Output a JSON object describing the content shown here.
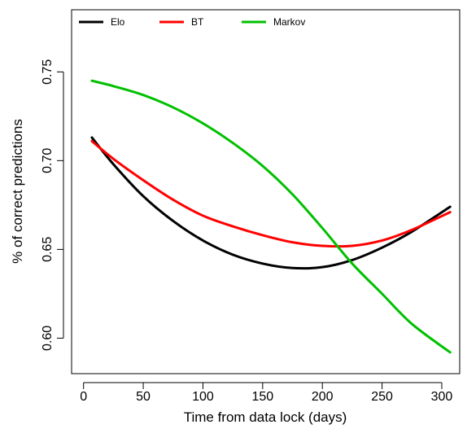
{
  "chart_data": {
    "type": "line",
    "xlabel": "Time from data lock (days)",
    "ylabel": "% of correct predictions",
    "xlim": [
      -10,
      315
    ],
    "ylim": [
      0.58,
      0.785
    ],
    "xticks": [
      0,
      50,
      100,
      150,
      200,
      250,
      300
    ],
    "yticks": [
      0.6,
      0.65,
      0.7,
      0.75
    ],
    "ytick_labels": [
      "0.60",
      "0.65",
      "0.70",
      "0.75"
    ],
    "grid": false,
    "legend_position": "top",
    "series": [
      {
        "name": "Elo",
        "color": "#000000",
        "x": [
          7,
          25,
          50,
          75,
          100,
          125,
          150,
          175,
          200,
          225,
          250,
          275,
          307
        ],
        "y": [
          0.713,
          0.698,
          0.68,
          0.666,
          0.655,
          0.647,
          0.642,
          0.6395,
          0.64,
          0.644,
          0.651,
          0.66,
          0.674
        ]
      },
      {
        "name": "BT",
        "color": "#ff0000",
        "x": [
          7,
          25,
          50,
          75,
          100,
          125,
          150,
          175,
          200,
          225,
          250,
          275,
          307
        ],
        "y": [
          0.711,
          0.701,
          0.689,
          0.678,
          0.669,
          0.663,
          0.658,
          0.654,
          0.652,
          0.652,
          0.655,
          0.661,
          0.671
        ]
      },
      {
        "name": "Markov",
        "color": "#00c000",
        "x": [
          7,
          25,
          50,
          75,
          100,
          125,
          150,
          175,
          200,
          225,
          250,
          275,
          307
        ],
        "y": [
          0.745,
          0.742,
          0.737,
          0.73,
          0.721,
          0.71,
          0.697,
          0.681,
          0.662,
          0.642,
          0.625,
          0.608,
          0.592
        ]
      }
    ]
  }
}
